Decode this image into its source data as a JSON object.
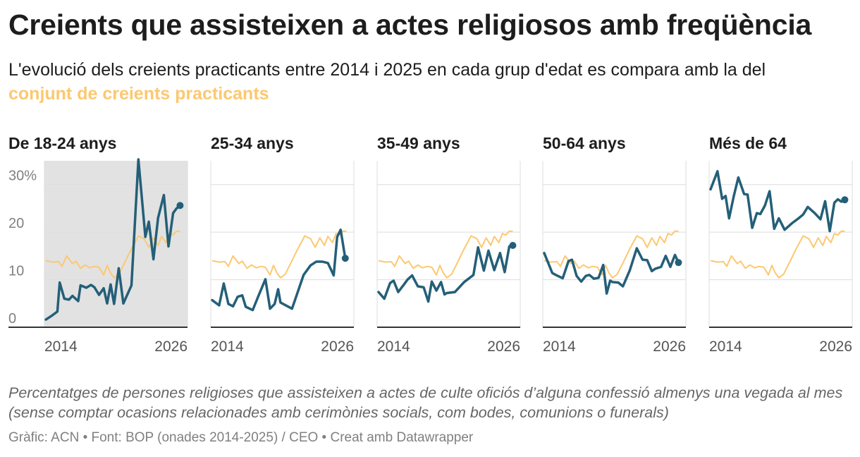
{
  "title": "Creients que assisteixen a actes religiosos amb freqüència",
  "subtitle": {
    "text": "L'evolució dels creients practicants entre 2014 i 2025 en cada grup d'edat es compara amb la del",
    "highlight": "conjunt de creients practicants"
  },
  "notes": "Percentatges de persones religioses que assisteixen a actes de culte oficiós d’alguna confessió almenys una vegada al mes (sense comptar ocasions relacionades amb cerimònies socials, com bodes, comunions o funerals)",
  "source": "Gràfic: ACN • Font: BOP (onades 2014-2025) / CEO • Creat amb Datawrapper",
  "colors": {
    "series": "#245f78",
    "overall": "#fcc870",
    "highlight_bg": "#e2e2e2",
    "grid": "#dddddd",
    "axis": "#333333",
    "tick_text": "#808080"
  },
  "chart_data": {
    "type": "line",
    "layout": "small-multiples",
    "xlim": [
      2014,
      2026
    ],
    "ylim": [
      0,
      35
    ],
    "x_ticks": [
      2014,
      2026
    ],
    "y_ticks": [
      0,
      10,
      20,
      30
    ],
    "y_tick_labels": [
      "0",
      "10",
      "20",
      "30%"
    ],
    "highlighted_panel": 0,
    "overall": {
      "x": [
        2014.0,
        2014.6,
        2015.1,
        2015.4,
        2015.8,
        2016.3,
        2016.6,
        2017.0,
        2017.4,
        2017.8,
        2018.2,
        2018.6,
        2019.0,
        2019.3,
        2019.6,
        2019.9,
        2020.3,
        2020.8,
        2021.4,
        2022.0,
        2022.5,
        2022.9,
        2023.3,
        2023.7,
        2024.0,
        2024.4,
        2024.7,
        2025.0,
        2025.3,
        2025.6
      ],
      "y": [
        14.0,
        13.7,
        13.8,
        12.8,
        15.0,
        13.4,
        13.9,
        12.4,
        13.1,
        12.5,
        12.8,
        12.6,
        11.0,
        13.0,
        11.4,
        10.4,
        11.1,
        13.5,
        16.5,
        19.2,
        18.6,
        16.8,
        18.8,
        17.2,
        19.1,
        17.8,
        19.7,
        19.4,
        20.2,
        20.2
      ]
    },
    "panels": [
      {
        "name": "De 18-24 anys",
        "x": [
          2014.0,
          2014.5,
          2015.0,
          2015.2,
          2015.6,
          2016.0,
          2016.3,
          2016.8,
          2017.0,
          2017.5,
          2017.9,
          2018.2,
          2018.6,
          2019.0,
          2019.3,
          2019.6,
          2019.9,
          2020.3,
          2020.7,
          2021.4,
          2022.0,
          2022.6,
          2022.9,
          2023.3,
          2023.7,
          2024.2,
          2024.6,
          2025.0,
          2025.3,
          2025.6
        ],
        "y": [
          1.6,
          2.4,
          3.3,
          9.4,
          6.0,
          5.8,
          6.6,
          5.5,
          8.8,
          8.3,
          8.9,
          8.4,
          6.8,
          8.2,
          5.0,
          9.0,
          4.9,
          12.4,
          5.0,
          8.8,
          35.3,
          19.0,
          22.2,
          14.3,
          23.0,
          27.8,
          17.0,
          24.0,
          25.0,
          25.6
        ]
      },
      {
        "name": "25-34 anys",
        "x": [
          2014.0,
          2014.6,
          2015.0,
          2015.4,
          2015.8,
          2016.2,
          2016.6,
          2016.9,
          2017.5,
          2018.0,
          2018.6,
          2019.0,
          2019.4,
          2019.7,
          2019.9,
          2020.9,
          2021.9,
          2022.5,
          2023.0,
          2023.5,
          2024.0,
          2024.5,
          2024.8,
          2025.1,
          2025.5
        ],
        "y": [
          5.7,
          4.6,
          9.2,
          4.9,
          4.4,
          6.4,
          6.7,
          4.3,
          3.6,
          6.6,
          10.1,
          3.9,
          4.9,
          8.0,
          5.2,
          3.9,
          11.0,
          13.0,
          13.8,
          13.8,
          13.5,
          10.9,
          19.0,
          20.5,
          14.5
        ]
      },
      {
        "name": "35-49 anys",
        "x": [
          2014.0,
          2014.5,
          2015.0,
          2015.3,
          2015.7,
          2016.2,
          2016.5,
          2016.9,
          2017.4,
          2017.9,
          2018.3,
          2018.6,
          2019.0,
          2019.4,
          2019.7,
          2019.9,
          2020.6,
          2021.4,
          2022.2,
          2022.6,
          2023.1,
          2023.5,
          2024.0,
          2024.5,
          2024.9,
          2025.3,
          2025.6
        ],
        "y": [
          7.4,
          6.0,
          9.3,
          9.8,
          7.4,
          9.0,
          10.0,
          10.9,
          8.6,
          8.4,
          5.4,
          9.6,
          7.7,
          9.5,
          6.9,
          7.2,
          7.4,
          9.5,
          11.0,
          16.8,
          11.9,
          16.1,
          12.0,
          15.6,
          11.6,
          17.0,
          17.2
        ]
      },
      {
        "name": "50-64 anys",
        "x": [
          2014.0,
          2014.7,
          2015.0,
          2015.6,
          2016.1,
          2016.4,
          2016.8,
          2017.2,
          2017.6,
          2017.9,
          2018.3,
          2018.7,
          2019.1,
          2019.4,
          2019.7,
          2019.9,
          2020.4,
          2020.8,
          2021.4,
          2022.0,
          2022.5,
          2022.9,
          2023.3,
          2023.6,
          2024.1,
          2024.5,
          2024.9,
          2025.3,
          2025.6
        ],
        "y": [
          15.6,
          11.4,
          11.0,
          10.3,
          13.9,
          14.2,
          10.8,
          9.6,
          10.8,
          11.0,
          10.2,
          10.4,
          13.1,
          7.1,
          9.8,
          9.5,
          9.4,
          8.6,
          12.0,
          16.6,
          14.2,
          14.1,
          11.8,
          12.3,
          12.7,
          15.0,
          12.7,
          15.2,
          13.6
        ]
      },
      {
        "name": "Més de 64",
        "x": [
          2014.0,
          2014.6,
          2015.0,
          2015.3,
          2015.6,
          2016.0,
          2016.4,
          2016.9,
          2017.2,
          2017.6,
          2018.0,
          2018.3,
          2018.7,
          2019.1,
          2019.5,
          2019.9,
          2020.4,
          2021.0,
          2021.6,
          2022.0,
          2022.4,
          2023.0,
          2023.5,
          2023.9,
          2024.3,
          2024.7,
          2025.0,
          2025.3,
          2025.6
        ],
        "y": [
          29.0,
          32.8,
          27.0,
          27.6,
          22.9,
          27.5,
          31.5,
          28.0,
          27.9,
          20.9,
          24.0,
          23.8,
          25.6,
          28.6,
          20.7,
          22.9,
          20.5,
          21.8,
          22.9,
          23.7,
          25.3,
          24.0,
          22.7,
          26.5,
          20.2,
          26.2,
          26.9,
          26.4,
          26.8
        ]
      }
    ]
  }
}
